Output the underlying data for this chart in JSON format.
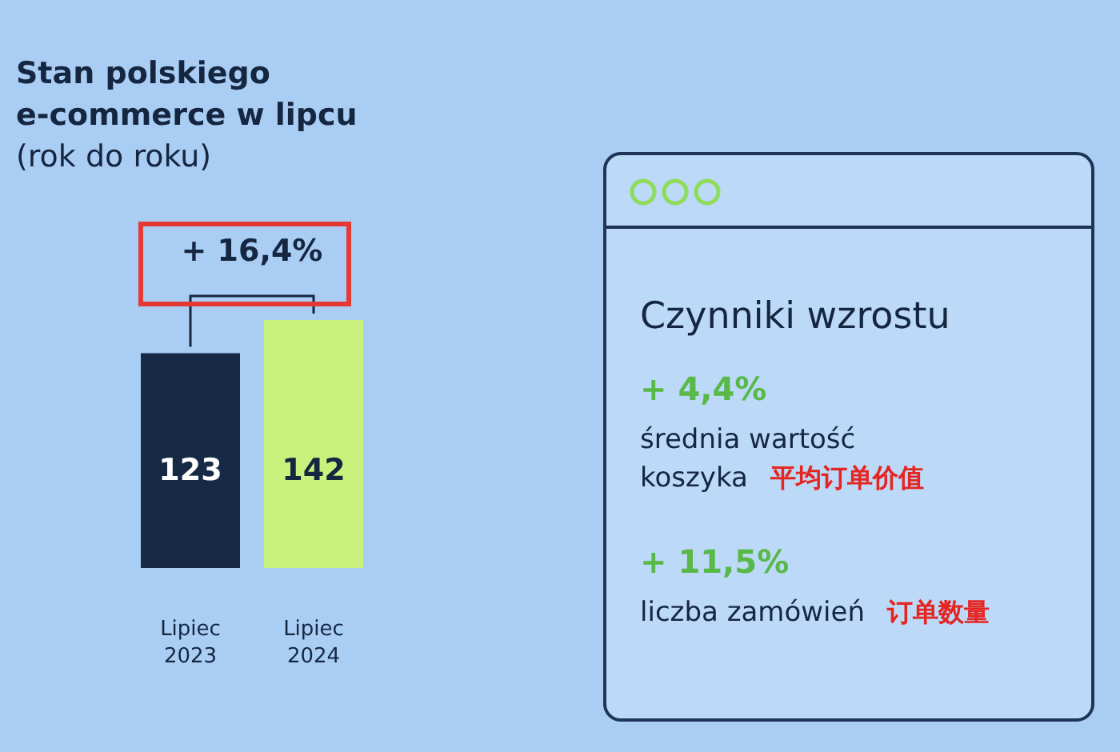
{
  "chart_data": [
    {
      "type": "bar",
      "title": "Stan polskiego e-commerce w lipcu",
      "subtitle": "(rok do roku)",
      "categories": [
        "Lipiec 2023",
        "Lipiec 2024"
      ],
      "values": [
        123,
        142
      ],
      "colors": [
        "#172a45",
        "#c8f27c"
      ],
      "data_labels": true,
      "annotations": [
        "+ 16,4%"
      ]
    },
    {
      "type": "other",
      "title": "Czynniki wzrostu",
      "annotations": [
        "+ 4,4%",
        "średnia wartość koszyka",
        "平均订单价值",
        "+ 11,5%",
        "liczba zamówień",
        "订单数量"
      ]
    }
  ]
}
